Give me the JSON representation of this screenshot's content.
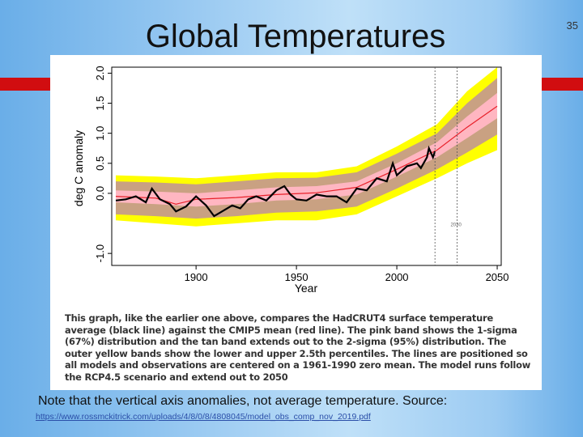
{
  "slide": {
    "title": "Global Temperatures",
    "number": "35",
    "note": "Note that the vertical axis anomalies, not average temperature.  Source:",
    "source_url": "https://www.rossmckitrick.com/uploads/4/8/0/8/4808045/model_obs_comp_nov_2019.pdf",
    "colors": {
      "accent_bar": "#d10d10",
      "background": "#9ccbf2"
    }
  },
  "chart_data": {
    "type": "line",
    "title": "",
    "xlabel": "Year",
    "ylabel": "deg C anomaly",
    "xlim": [
      1858,
      2052
    ],
    "ylim": [
      -1.2,
      2.1
    ],
    "x_ticks": [
      1900,
      1950,
      2000,
      2050
    ],
    "y_ticks": [
      -1.0,
      0.0,
      0.5,
      1.0,
      1.5,
      2.0
    ],
    "y_tick_labels": [
      "-1.0",
      "0.0",
      "0.5",
      "1.0",
      "1.5",
      "2.0"
    ],
    "vline_years": [
      2019,
      2030
    ],
    "vline_label": "2030",
    "series": [
      {
        "name": "Outer yellow band (2.5th-97.5th percentile)",
        "color": "#ffff00",
        "x": [
          1860,
          1880,
          1900,
          1920,
          1940,
          1960,
          1980,
          2000,
          2020,
          2035,
          2050
        ],
        "lower": [
          -0.45,
          -0.5,
          -0.55,
          -0.5,
          -0.45,
          -0.45,
          -0.35,
          -0.05,
          0.25,
          0.5,
          0.72
        ],
        "upper": [
          0.3,
          0.28,
          0.25,
          0.3,
          0.35,
          0.35,
          0.45,
          0.78,
          1.15,
          1.7,
          2.1
        ]
      },
      {
        "name": "Tan band (2-sigma, 95%)",
        "color": "#c9a182",
        "x": [
          1860,
          1880,
          1900,
          1920,
          1940,
          1960,
          1980,
          2000,
          2020,
          2035,
          2050
        ],
        "lower": [
          -0.35,
          -0.38,
          -0.42,
          -0.38,
          -0.32,
          -0.3,
          -0.22,
          0.08,
          0.4,
          0.68,
          0.98
        ],
        "upper": [
          0.2,
          0.18,
          0.15,
          0.2,
          0.25,
          0.26,
          0.35,
          0.66,
          1.0,
          1.5,
          1.92
        ]
      },
      {
        "name": "Pink band (1-sigma, 67%)",
        "color": "#ffb6c1",
        "x": [
          1860,
          1880,
          1900,
          1920,
          1940,
          1960,
          1980,
          2000,
          2020,
          2035,
          2050
        ],
        "lower": [
          -0.15,
          -0.18,
          -0.22,
          -0.18,
          -0.12,
          -0.1,
          -0.02,
          0.28,
          0.6,
          0.92,
          1.25
        ],
        "upper": [
          0.05,
          0.03,
          0.0,
          0.05,
          0.1,
          0.12,
          0.2,
          0.5,
          0.85,
          1.28,
          1.67
        ]
      },
      {
        "name": "CMIP5 mean",
        "color": "#e8202a",
        "x": [
          1860,
          1880,
          1890,
          1900,
          1920,
          1940,
          1960,
          1980,
          2000,
          2020,
          2035,
          2050
        ],
        "y": [
          -0.05,
          -0.08,
          -0.18,
          -0.1,
          -0.07,
          -0.02,
          0.01,
          0.1,
          0.4,
          0.72,
          1.1,
          1.45
        ]
      },
      {
        "name": "HadCRUT4 observations",
        "color": "#000000",
        "x": [
          1860,
          1865,
          1870,
          1875,
          1878,
          1882,
          1887,
          1890,
          1895,
          1900,
          1905,
          1909,
          1913,
          1918,
          1922,
          1926,
          1930,
          1935,
          1940,
          1944,
          1947,
          1950,
          1955,
          1960,
          1965,
          1970,
          1975,
          1980,
          1985,
          1990,
          1995,
          1998,
          2000,
          2005,
          2010,
          2012,
          2015,
          2016,
          2018,
          2019
        ],
        "y": [
          -0.12,
          -0.1,
          -0.05,
          -0.15,
          0.08,
          -0.1,
          -0.18,
          -0.3,
          -0.22,
          -0.05,
          -0.2,
          -0.38,
          -0.3,
          -0.2,
          -0.25,
          -0.1,
          -0.05,
          -0.12,
          0.05,
          0.12,
          -0.02,
          -0.1,
          -0.12,
          -0.02,
          -0.05,
          -0.05,
          -0.15,
          0.08,
          0.05,
          0.25,
          0.2,
          0.5,
          0.3,
          0.45,
          0.5,
          0.42,
          0.6,
          0.75,
          0.6,
          0.7
        ]
      }
    ],
    "caption": "This graph, like the earlier one above, compares the HadCRUT4 surface temperature average (black line) against the CMIP5 mean (red line). The pink band shows the 1-sigma (67%) distribution and the tan band extends out to the 2-sigma (95%) distribution. The outer yellow bands show the lower and upper 2.5th percentiles. The lines are positioned so all models and observations are centered on a 1961-1990 zero mean. The model runs follow the RCP4.5 scenario and extend out to 2050"
  }
}
